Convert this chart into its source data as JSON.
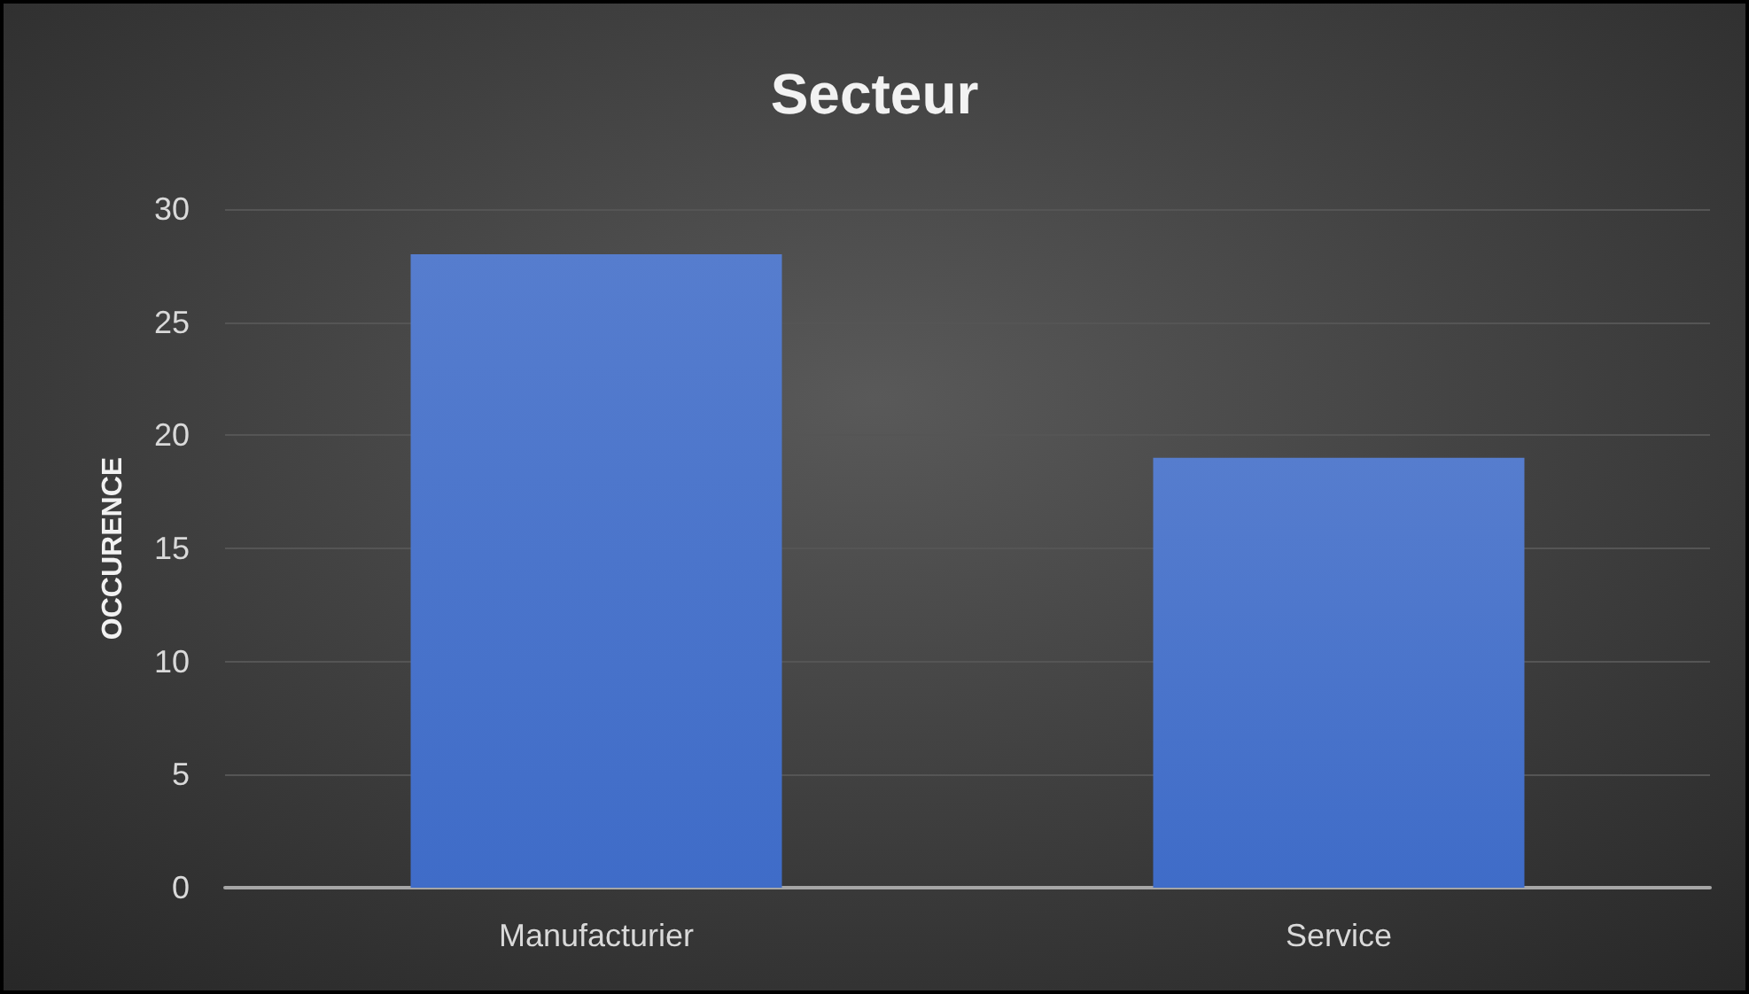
{
  "chart_data": {
    "type": "bar",
    "title": "Secteur",
    "ylabel": "OCCURENCE",
    "categories": [
      "Manufacturier",
      "Service"
    ],
    "values": [
      28,
      19
    ],
    "color": "#3f6cc8",
    "ylim": [
      0,
      30
    ],
    "yticks": [
      0,
      5,
      10,
      15,
      20,
      25,
      30
    ],
    "grid": "y"
  }
}
